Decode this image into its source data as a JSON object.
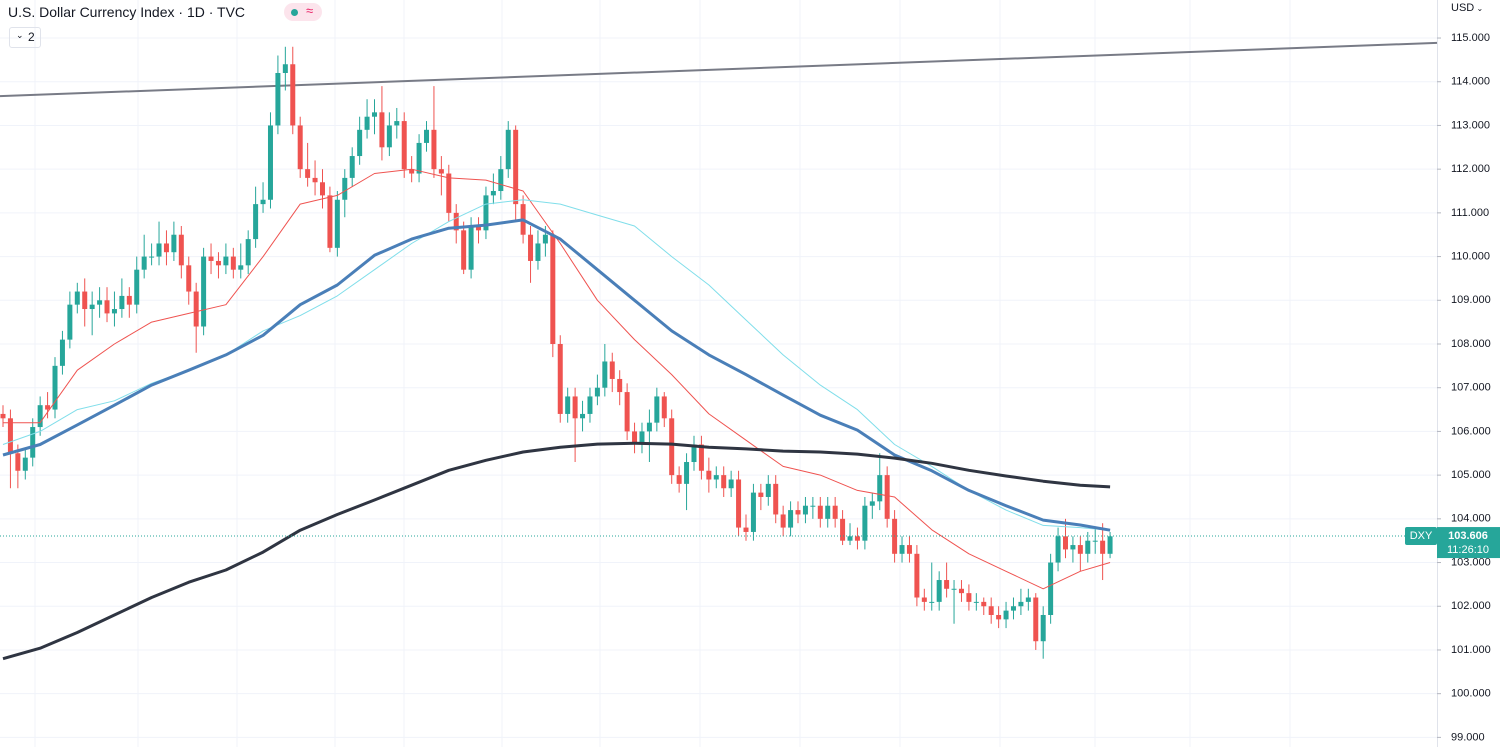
{
  "header": {
    "title": "U.S. Dollar Currency Index · 1D · TVC",
    "status": "≈",
    "indicator_count": "2",
    "currency": "USD"
  },
  "chart_data": {
    "type": "candlestick",
    "symbol": "DXY",
    "last_price": 103.606,
    "countdown": "11:26:10",
    "up_color": "#26a69a",
    "down_color": "#ef5350",
    "open": [
      106.4,
      106.3,
      105.5,
      105.1,
      105.4,
      106.1,
      106.6,
      106.5,
      107.5,
      108.1,
      108.9,
      109.2,
      108.8,
      108.9,
      109.0,
      108.7,
      108.8,
      109.1,
      108.9,
      109.7,
      110.0,
      110.0,
      110.3,
      110.1,
      110.5,
      109.8,
      109.2,
      108.4,
      110.0,
      109.9,
      109.8,
      110.0,
      109.7,
      109.8,
      110.4,
      111.2,
      111.3,
      113.0,
      114.2,
      114.4,
      113.0,
      112.0,
      111.8,
      111.7,
      111.4,
      110.2,
      111.3,
      111.8,
      112.3,
      112.9,
      113.2,
      113.3,
      112.5,
      113.0,
      113.1,
      112.0,
      111.9,
      112.6,
      112.9,
      112.0,
      111.9,
      111.0,
      110.6,
      109.7,
      110.7,
      110.6,
      111.4,
      111.5,
      112.0,
      112.9,
      111.2,
      110.5,
      109.9,
      110.3,
      110.5,
      108.0,
      106.4,
      106.8,
      106.3,
      106.4,
      106.8,
      107.0,
      107.6,
      107.2,
      106.9,
      106.0,
      105.7,
      106.0,
      106.2,
      106.8,
      106.3,
      105.0,
      104.8,
      105.3,
      105.7,
      105.1,
      104.9,
      105.0,
      104.7,
      104.9,
      103.8,
      103.7,
      104.6,
      104.5,
      104.8,
      104.1,
      103.8,
      104.2,
      104.1,
      104.3,
      104.3,
      104.0,
      104.3,
      104.0,
      103.5,
      103.6,
      103.5,
      104.3,
      104.4,
      105.0,
      104.0,
      103.2,
      103.4,
      103.2,
      102.2,
      102.1,
      102.1,
      102.6,
      102.4,
      102.4,
      102.3,
      102.1,
      102.1,
      102.0,
      101.8,
      101.7,
      101.9,
      102.0,
      102.1,
      102.2,
      101.2,
      101.8,
      103.0,
      103.6,
      103.3,
      103.4,
      103.2,
      103.5,
      103.5,
      103.2
    ],
    "high": [
      106.6,
      106.5,
      105.7,
      105.6,
      106.3,
      106.8,
      106.9,
      107.7,
      108.3,
      109.2,
      109.4,
      109.5,
      109.2,
      109.3,
      109.3,
      109.2,
      109.5,
      109.3,
      110.0,
      110.5,
      110.3,
      110.8,
      110.6,
      110.8,
      110.7,
      110.0,
      109.4,
      110.2,
      110.3,
      110.1,
      110.3,
      110.2,
      110.3,
      110.6,
      111.6,
      111.7,
      113.3,
      114.6,
      114.8,
      114.8,
      113.2,
      112.6,
      112.2,
      112.0,
      111.6,
      111.5,
      112.0,
      112.5,
      113.2,
      113.6,
      113.6,
      113.9,
      113.3,
      113.4,
      113.3,
      112.3,
      112.8,
      113.1,
      113.9,
      112.3,
      112.1,
      111.2,
      110.8,
      110.9,
      110.9,
      111.6,
      111.9,
      112.3,
      113.1,
      113.0,
      111.4,
      110.7,
      110.6,
      110.7,
      110.6,
      108.2,
      107.0,
      107.0,
      106.7,
      107.0,
      107.3,
      108.0,
      107.8,
      107.4,
      107.1,
      106.2,
      106.2,
      106.5,
      107.0,
      106.9,
      106.5,
      105.2,
      105.5,
      105.9,
      105.9,
      105.4,
      105.2,
      105.2,
      105.1,
      105.1,
      104.1,
      104.8,
      104.8,
      105.0,
      105.0,
      104.3,
      104.4,
      104.4,
      104.5,
      104.5,
      104.5,
      104.5,
      104.5,
      104.2,
      103.9,
      103.8,
      104.5,
      104.6,
      105.5,
      105.2,
      104.2,
      103.6,
      103.6,
      103.4,
      102.4,
      103.0,
      102.8,
      103.0,
      102.6,
      102.6,
      102.5,
      102.3,
      102.2,
      102.2,
      102.0,
      102.1,
      102.2,
      102.4,
      102.4,
      102.3,
      102.0,
      103.2,
      103.8,
      104.0,
      103.6,
      103.6,
      103.7,
      103.8,
      103.9,
      103.7
    ],
    "low": [
      106.1,
      104.7,
      104.7,
      104.9,
      105.2,
      105.9,
      106.3,
      106.3,
      107.3,
      107.9,
      108.7,
      108.4,
      108.2,
      108.6,
      108.5,
      108.4,
      108.6,
      108.6,
      108.7,
      109.5,
      109.8,
      109.8,
      109.8,
      109.9,
      109.5,
      108.9,
      107.8,
      108.2,
      109.6,
      109.5,
      109.6,
      109.5,
      109.5,
      109.6,
      110.2,
      111.0,
      111.1,
      112.8,
      113.8,
      112.8,
      111.8,
      111.6,
      111.4,
      111.1,
      110.1,
      110.0,
      110.9,
      111.6,
      112.1,
      112.7,
      112.8,
      112.2,
      112.3,
      112.7,
      111.8,
      111.7,
      111.7,
      112.4,
      111.8,
      111.4,
      110.8,
      110.3,
      109.6,
      109.5,
      110.3,
      110.4,
      111.2,
      111.3,
      111.8,
      110.8,
      110.3,
      109.4,
      109.7,
      110.0,
      107.7,
      106.2,
      106.2,
      105.3,
      106.0,
      106.2,
      106.6,
      106.8,
      106.9,
      106.6,
      105.8,
      105.5,
      105.5,
      105.3,
      106.0,
      106.1,
      104.8,
      104.6,
      104.2,
      105.1,
      104.9,
      104.6,
      104.7,
      104.5,
      104.5,
      103.6,
      103.5,
      103.5,
      104.2,
      104.3,
      103.9,
      103.6,
      103.6,
      103.9,
      103.9,
      104.0,
      103.8,
      103.8,
      103.8,
      103.4,
      103.4,
      103.3,
      103.3,
      104.0,
      104.2,
      103.8,
      103.0,
      103.0,
      103.0,
      102.0,
      101.9,
      101.9,
      101.9,
      102.2,
      101.6,
      102.1,
      101.9,
      101.9,
      101.8,
      101.6,
      101.5,
      101.5,
      101.7,
      101.8,
      101.9,
      101.0,
      100.8,
      101.6,
      102.8,
      103.1,
      103.0,
      102.8,
      103.0,
      103.2,
      102.6,
      103.1
    ],
    "close": [
      106.3,
      105.5,
      105.1,
      105.4,
      106.1,
      106.6,
      106.5,
      107.5,
      108.1,
      108.9,
      109.2,
      108.8,
      108.9,
      109.0,
      108.7,
      108.8,
      109.1,
      108.9,
      109.7,
      110.0,
      110.0,
      110.3,
      110.1,
      110.5,
      109.8,
      109.2,
      108.4,
      110.0,
      109.9,
      109.8,
      110.0,
      109.7,
      109.8,
      110.4,
      111.2,
      111.3,
      113.0,
      114.2,
      114.4,
      113.0,
      112.0,
      111.8,
      111.7,
      111.4,
      110.2,
      111.3,
      111.8,
      112.3,
      112.9,
      113.2,
      113.3,
      112.5,
      113.0,
      113.1,
      112.0,
      111.9,
      112.6,
      112.9,
      112.0,
      111.9,
      111.0,
      110.6,
      109.7,
      110.7,
      110.6,
      111.4,
      111.5,
      112.0,
      112.9,
      111.2,
      110.5,
      109.9,
      110.3,
      110.5,
      108.0,
      106.4,
      106.8,
      106.3,
      106.4,
      106.8,
      107.0,
      107.6,
      107.2,
      106.9,
      106.0,
      105.7,
      106.0,
      106.2,
      106.8,
      106.3,
      105.0,
      104.8,
      105.3,
      105.7,
      105.1,
      104.9,
      105.0,
      104.7,
      104.9,
      103.8,
      103.7,
      104.6,
      104.5,
      104.8,
      104.1,
      103.8,
      104.2,
      104.1,
      104.3,
      104.3,
      104.0,
      104.3,
      104.0,
      103.5,
      103.6,
      103.5,
      104.3,
      104.4,
      105.0,
      104.0,
      103.2,
      103.4,
      103.2,
      102.2,
      102.1,
      102.1,
      102.6,
      102.4,
      102.4,
      102.3,
      102.1,
      102.1,
      102.0,
      101.8,
      101.7,
      101.9,
      102.0,
      102.1,
      102.2,
      101.2,
      101.8,
      103.0,
      103.6,
      103.3,
      103.4,
      103.2,
      103.5,
      103.5,
      103.2,
      103.6
    ],
    "moving_averages": [
      {
        "color": "#ef5350",
        "width": 1,
        "x": [
          0,
          5,
          10,
          15,
          20,
          25,
          30,
          35,
          40,
          45,
          50,
          55,
          60,
          65,
          70,
          75,
          80,
          85,
          90,
          95,
          100,
          105,
          110,
          115,
          120,
          125,
          130,
          135,
          140,
          145,
          149
        ],
        "values": [
          106.2,
          106.2,
          107.4,
          108.0,
          108.5,
          108.7,
          108.9,
          110.0,
          111.2,
          111.4,
          111.9,
          112.0,
          111.8,
          111.75,
          111.5,
          110.3,
          109.0,
          108.1,
          107.3,
          106.4,
          105.8,
          105.2,
          105.0,
          104.65,
          104.5,
          103.75,
          103.2,
          102.8,
          102.4,
          102.8,
          103.0
        ]
      },
      {
        "color": "#80deea",
        "width": 1,
        "x": [
          0,
          5,
          10,
          15,
          20,
          25,
          30,
          35,
          40,
          45,
          50,
          55,
          60,
          65,
          70,
          75,
          80,
          85,
          90,
          95,
          100,
          105,
          110,
          115,
          120,
          125,
          130,
          135,
          140,
          145,
          149
        ],
        "values": [
          105.7,
          106.0,
          106.5,
          106.7,
          107.1,
          107.4,
          107.75,
          108.3,
          108.65,
          109.1,
          109.7,
          110.3,
          110.8,
          111.2,
          111.3,
          111.2,
          110.95,
          110.7,
          110.0,
          109.35,
          108.55,
          107.75,
          107.06,
          106.5,
          105.7,
          105.2,
          104.65,
          104.2,
          103.85,
          103.8,
          103.74
        ]
      },
      {
        "color": "#4a7fb8",
        "width": 3,
        "x": [
          0,
          5,
          10,
          15,
          20,
          25,
          30,
          35,
          40,
          45,
          50,
          55,
          60,
          65,
          70,
          75,
          80,
          85,
          90,
          95,
          100,
          105,
          110,
          115,
          120,
          125,
          130,
          135,
          140,
          145,
          149
        ],
        "values": [
          105.46,
          105.7,
          106.15,
          106.6,
          107.06,
          107.4,
          107.75,
          108.2,
          108.9,
          109.35,
          110.03,
          110.4,
          110.65,
          110.72,
          110.84,
          110.4,
          109.7,
          109.0,
          108.3,
          107.75,
          107.3,
          106.83,
          106.37,
          106.03,
          105.46,
          105.1,
          104.65,
          104.3,
          103.97,
          103.86,
          103.74
        ]
      },
      {
        "color": "#2f3542",
        "width": 3,
        "x": [
          0,
          5,
          10,
          15,
          20,
          25,
          30,
          35,
          40,
          45,
          50,
          55,
          60,
          65,
          70,
          75,
          80,
          85,
          90,
          95,
          100,
          105,
          110,
          115,
          120,
          125,
          130,
          135,
          140,
          145,
          149
        ],
        "values": [
          100.8,
          101.04,
          101.4,
          101.8,
          102.2,
          102.55,
          102.83,
          103.24,
          103.74,
          104.1,
          104.43,
          104.77,
          105.11,
          105.34,
          105.53,
          105.64,
          105.71,
          105.73,
          105.71,
          105.64,
          105.6,
          105.55,
          105.53,
          105.48,
          105.39,
          105.27,
          105.11,
          104.98,
          104.86,
          104.77,
          104.73
        ]
      }
    ],
    "trendline": {
      "color": "#787b86",
      "values": [
        113.67,
        114.89
      ]
    },
    "ylim": [
      98.78,
      115.87
    ],
    "yticks": [
      {
        "value": 115,
        "label": "115.000"
      },
      {
        "value": 114,
        "label": "114.000"
      },
      {
        "value": 113,
        "label": "113.000"
      },
      {
        "value": 112,
        "label": "112.000"
      },
      {
        "value": 111,
        "label": "111.000"
      },
      {
        "value": 110,
        "label": "110.000"
      },
      {
        "value": 109,
        "label": "109.000"
      },
      {
        "value": 108,
        "label": "108.000"
      },
      {
        "value": 107,
        "label": "107.000"
      },
      {
        "value": 106,
        "label": "106.000"
      },
      {
        "value": 105,
        "label": "105.000"
      },
      {
        "value": 104,
        "label": "104.000"
      },
      {
        "value": 103,
        "label": "103.000"
      },
      {
        "value": 102,
        "label": "102.000"
      },
      {
        "value": 101,
        "label": "101.000"
      },
      {
        "value": 100,
        "label": "100.000"
      },
      {
        "value": 99,
        "label": "99.000"
      }
    ],
    "grid": true
  }
}
